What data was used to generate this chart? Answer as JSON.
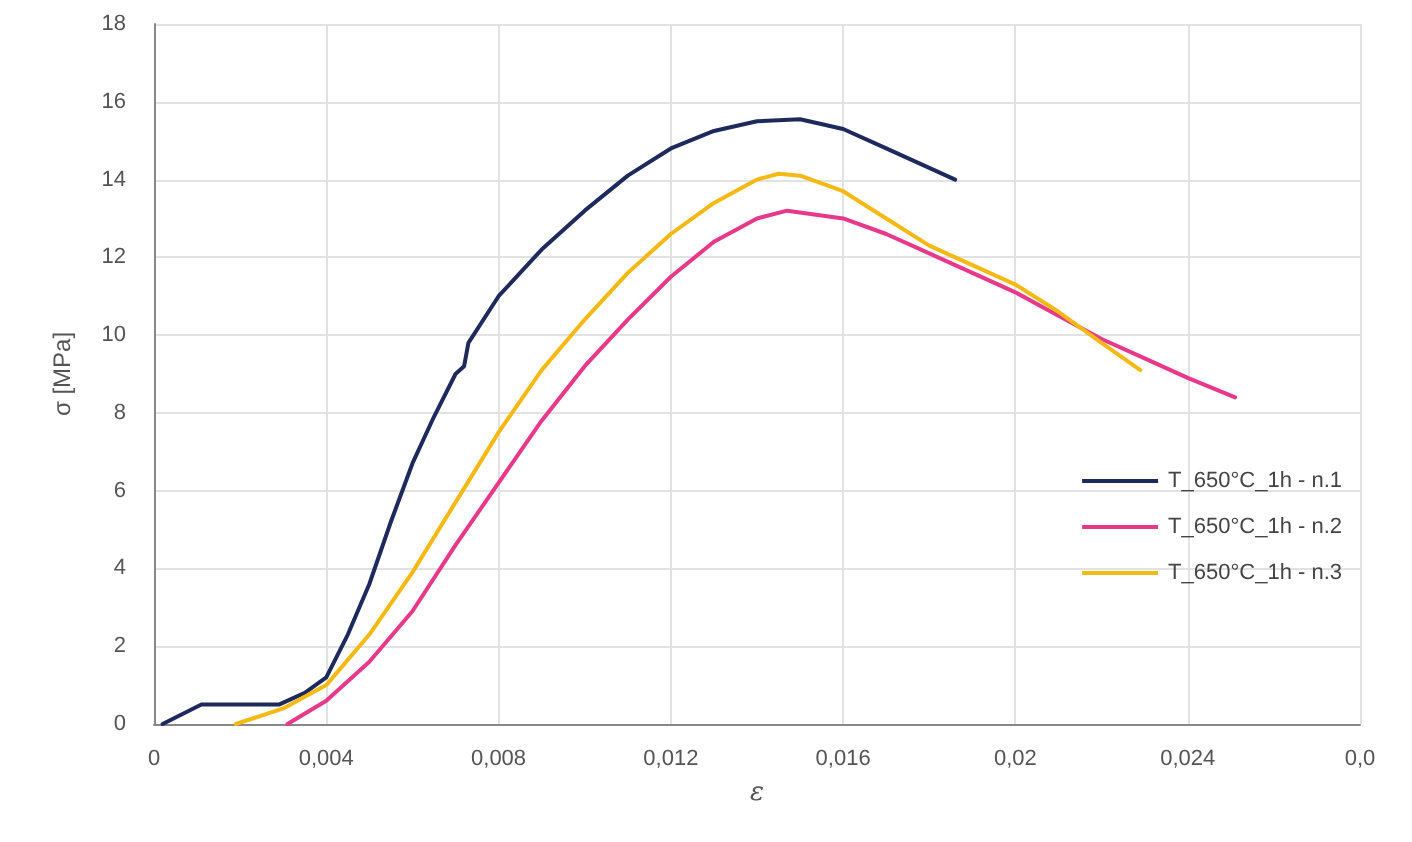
{
  "chart_data": {
    "type": "line",
    "xlabel": "ε",
    "ylabel": "σ [MPa]",
    "xlim": [
      0,
      0.028
    ],
    "xticks": [
      {
        "value": 0,
        "label": "0"
      },
      {
        "value": 0.004,
        "label": "0,004"
      },
      {
        "value": 0.008,
        "label": "0,008"
      },
      {
        "value": 0.012,
        "label": "0,012"
      },
      {
        "value": 0.016,
        "label": "0,016"
      },
      {
        "value": 0.02,
        "label": "0,02"
      },
      {
        "value": 0.024,
        "label": "0,024"
      },
      {
        "value": 0.028,
        "label": "0,0"
      }
    ],
    "ylim": [
      0,
      18
    ],
    "yticks": [
      0,
      2,
      4,
      6,
      8,
      10,
      12,
      14,
      16,
      18
    ],
    "grid": true,
    "legend": "right",
    "marker": "none",
    "line_style": "solid",
    "series": [
      {
        "name": "T_650°C_1h - n.1",
        "color": "#1f2a5c",
        "x": [
          0.0002,
          0.0011,
          0.0029,
          0.0035,
          0.004,
          0.0045,
          0.005,
          0.0055,
          0.006,
          0.0065,
          0.007,
          0.0072,
          0.0073,
          0.008,
          0.009,
          0.01,
          0.011,
          0.012,
          0.013,
          0.014,
          0.015,
          0.016,
          0.017,
          0.0186
        ],
        "values": [
          0,
          0.5,
          0.5,
          0.8,
          1.2,
          2.3,
          3.6,
          5.2,
          6.7,
          7.9,
          9.0,
          9.2,
          9.8,
          11.0,
          12.2,
          13.2,
          14.1,
          14.8,
          15.25,
          15.5,
          15.55,
          15.3,
          14.8,
          14.0
        ]
      },
      {
        "name": "T_650°C_1h - n.2",
        "color": "#e8388a",
        "x": [
          0.0031,
          0.004,
          0.005,
          0.006,
          0.007,
          0.008,
          0.009,
          0.01,
          0.011,
          0.012,
          0.013,
          0.014,
          0.0147,
          0.016,
          0.017,
          0.018,
          0.019,
          0.02,
          0.021,
          0.022,
          0.023,
          0.024,
          0.0251
        ],
        "values": [
          0,
          0.6,
          1.6,
          2.9,
          4.6,
          6.2,
          7.8,
          9.2,
          10.4,
          11.5,
          12.4,
          13.0,
          13.2,
          13.0,
          12.6,
          12.1,
          11.6,
          11.1,
          10.5,
          9.9,
          9.4,
          8.9,
          8.4
        ]
      },
      {
        "name": "T_650°C_1h - n.3",
        "color": "#f5b915",
        "x": [
          0.0019,
          0.003,
          0.004,
          0.005,
          0.006,
          0.007,
          0.008,
          0.009,
          0.01,
          0.011,
          0.012,
          0.013,
          0.014,
          0.0145,
          0.015,
          0.016,
          0.017,
          0.018,
          0.019,
          0.02,
          0.021,
          0.022,
          0.0229
        ],
        "values": [
          0,
          0.4,
          1.0,
          2.3,
          3.9,
          5.7,
          7.5,
          9.1,
          10.4,
          11.6,
          12.6,
          13.4,
          14.0,
          14.15,
          14.1,
          13.7,
          13.0,
          12.3,
          11.8,
          11.3,
          10.6,
          9.8,
          9.1
        ]
      }
    ]
  }
}
